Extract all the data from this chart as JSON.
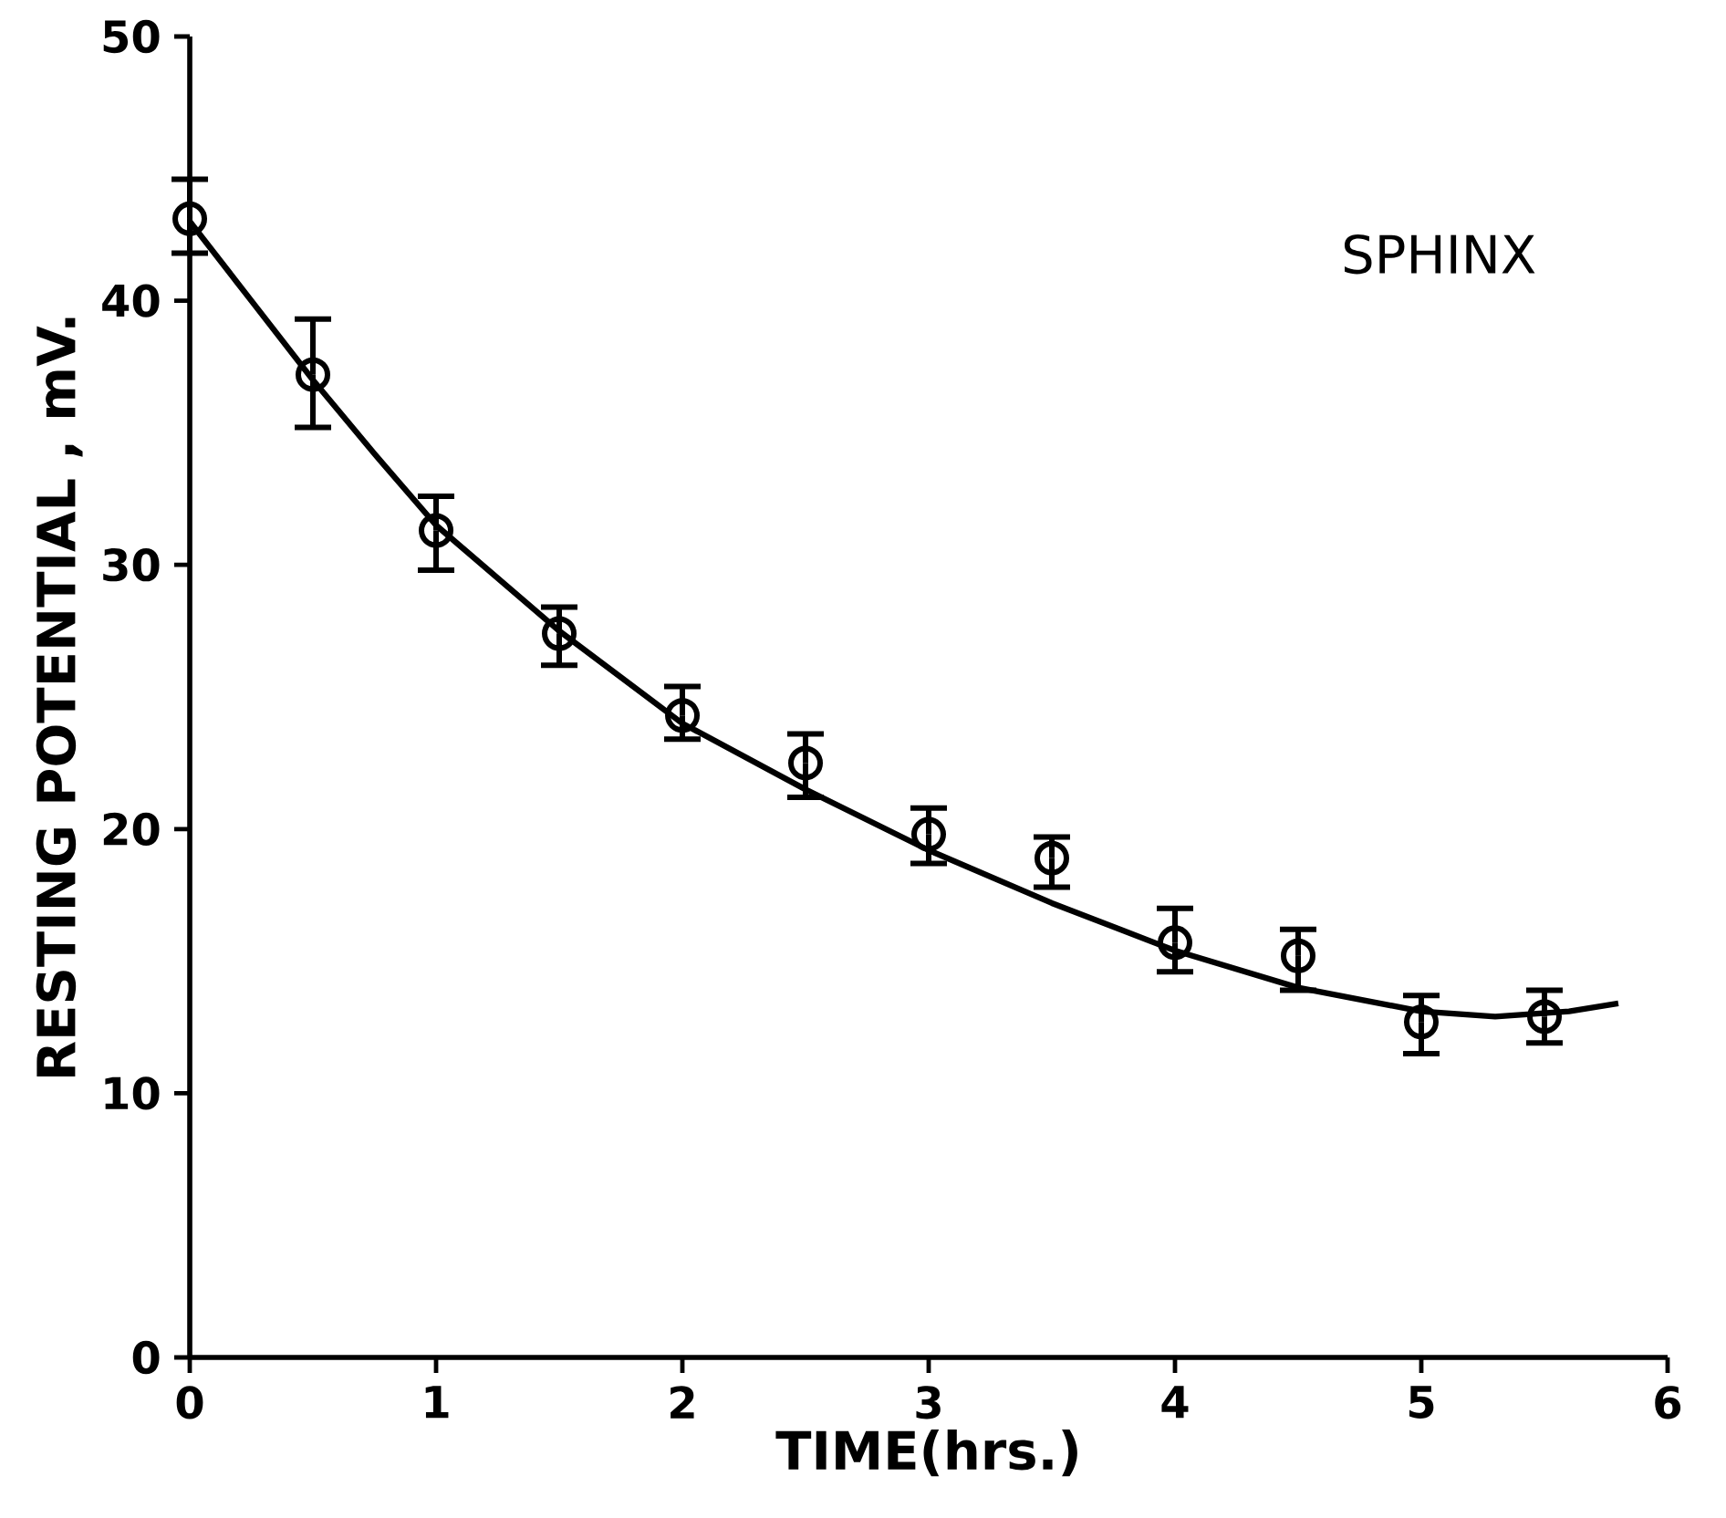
{
  "chart_data": {
    "type": "scatter",
    "xlabel": "TIME(hrs.)",
    "ylabel": "RESTING POTENTIAL , mV.",
    "annotations": [
      "SPHINX"
    ],
    "xlim": [
      0,
      6
    ],
    "ylim": [
      0,
      50
    ],
    "xticks": [
      0,
      1,
      2,
      3,
      4,
      5,
      6
    ],
    "yticks": [
      0,
      10,
      20,
      30,
      40,
      50
    ],
    "marker": "circle",
    "series": [
      {
        "color": "#000000",
        "x": [
          0,
          0.5,
          1,
          1.5,
          2,
          2.5,
          3,
          3.5,
          4,
          4.5,
          5,
          5.5
        ],
        "values": [
          43.1,
          37.2,
          31.3,
          27.4,
          24.3,
          22.5,
          19.8,
          18.9,
          15.7,
          15.2,
          12.7,
          12.9
        ],
        "errors": [
          [
            41.8,
            44.6
          ],
          [
            35.2,
            39.3
          ],
          [
            29.8,
            32.6
          ],
          [
            26.2,
            28.4
          ],
          [
            23.4,
            25.4
          ],
          [
            21.2,
            23.6
          ],
          [
            18.7,
            20.8
          ],
          [
            17.8,
            19.7
          ],
          [
            14.6,
            17.0
          ],
          [
            13.9,
            16.2
          ],
          [
            11.5,
            13.7
          ],
          [
            11.9,
            13.9
          ]
        ]
      },
      {
        "type": "line",
        "color": "#000000",
        "marker": "none",
        "line_style": "solid",
        "x": [
          0,
          0.25,
          0.5,
          0.75,
          1,
          1.5,
          2,
          2.5,
          3,
          3.5,
          4,
          4.5,
          5,
          5.3,
          5.6,
          5.8
        ],
        "values": [
          43,
          40,
          37,
          34.2,
          31.5,
          27.5,
          24,
          21.5,
          19.2,
          17.2,
          15.4,
          14,
          13.1,
          12.9,
          13.1,
          13.4
        ]
      }
    ]
  }
}
